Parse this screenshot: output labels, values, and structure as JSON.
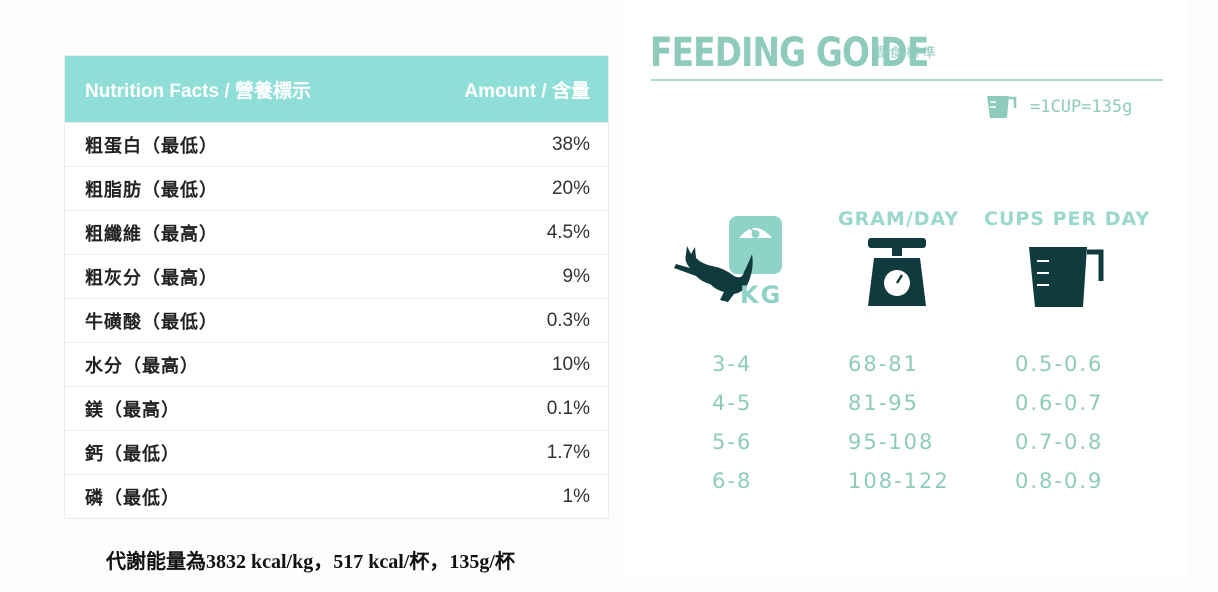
{
  "nutrition": {
    "header_left": "Nutrition Facts / 營養標示",
    "header_right": "Amount / 含量",
    "rows": [
      {
        "name": "粗蛋白（最低）",
        "value": "38%"
      },
      {
        "name": "粗脂肪（最低）",
        "value": "20%"
      },
      {
        "name": "粗纖維（最高）",
        "value": "4.5%"
      },
      {
        "name": "粗灰分（最高）",
        "value": "9%"
      },
      {
        "name": "牛磺酸（最低）",
        "value": "0.3%"
      },
      {
        "name": "水分（最高）",
        "value": "10%"
      },
      {
        "name": "鎂（最高）",
        "value": "0.1%"
      },
      {
        "name": "鈣（最低）",
        "value": "1.7%"
      },
      {
        "name": "磷（最低）",
        "value": "1%"
      }
    ],
    "energy_note": "代謝能量為3832 kcal/kg，517 kcal/杯，135g/杯"
  },
  "feeding": {
    "title": "FEEDING GOIDE",
    "subtitle": "餵食標準",
    "cup_note": "=1CUP=135g",
    "kg_label": "KG",
    "col_gram": "GRAM/DAY",
    "col_cups": "CUPS PER DAY",
    "weights": [
      "3-4",
      "4-5",
      "5-6",
      "6-8"
    ],
    "grams": [
      "68-81",
      "81-95",
      "95-108",
      "108-122"
    ],
    "cups": [
      "0.5-0.6",
      "0.6-0.7",
      "0.7-0.8",
      "0.8-0.9"
    ],
    "colors": {
      "accent": "#8fcbbd",
      "header": "#8fded8",
      "dark": "#0f3b3f"
    },
    "icons": [
      "cup-icon",
      "cat-icon",
      "weight-scale-icon",
      "kitchen-scale-icon",
      "measuring-cup-icon"
    ]
  }
}
